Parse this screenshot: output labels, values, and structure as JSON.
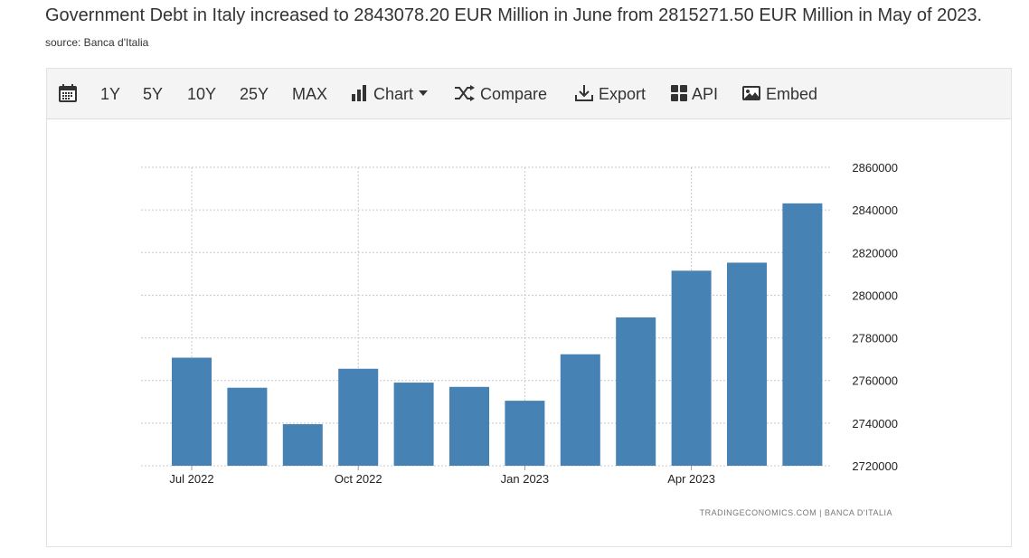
{
  "headline": "Government Debt in Italy increased to 2843078.20 EUR Million in June from 2815271.50 EUR Million in May of 2023.",
  "source": "source: Banca d'Italia",
  "toolbar": {
    "calendar_icon": "calendar-icon",
    "ranges": [
      "1Y",
      "5Y",
      "10Y",
      "25Y",
      "MAX"
    ],
    "chart_label": "Chart",
    "compare_label": "Compare",
    "export_label": "Export",
    "api_label": "API",
    "embed_label": "Embed"
  },
  "credit": "TRADINGECONOMICS.COM  |  BANCA D'ITALIA",
  "chart_data": {
    "type": "bar",
    "categories": [
      "Jul 2022",
      "Aug 2022",
      "Sep 2022",
      "Oct 2022",
      "Nov 2022",
      "Dec 2022",
      "Jan 2023",
      "Feb 2023",
      "Mar 2023",
      "Apr 2023",
      "May 2023",
      "Jun 2023"
    ],
    "values": [
      2770700,
      2756600,
      2739500,
      2765500,
      2759000,
      2757000,
      2750500,
      2772300,
      2789600,
      2811500,
      2815271.5,
      2843078.2
    ],
    "x_tick_labels": [
      "Jul 2022",
      "Oct 2022",
      "Jan 2023",
      "Apr 2023"
    ],
    "y_ticks": [
      2720000,
      2740000,
      2760000,
      2780000,
      2800000,
      2820000,
      2840000,
      2860000
    ],
    "ylim": [
      2720000,
      2860000
    ],
    "bar_color": "#4682b4",
    "grid": true
  }
}
